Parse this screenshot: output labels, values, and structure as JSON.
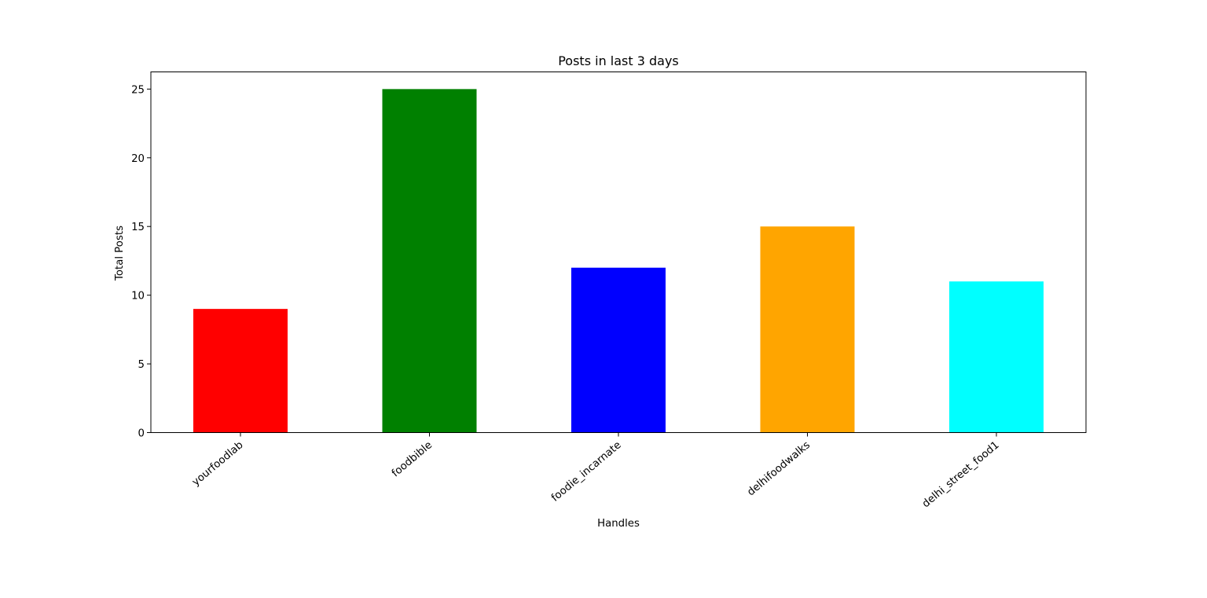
{
  "chart_data": {
    "type": "bar",
    "title": "Posts in last 3 days",
    "xlabel": "Handles",
    "ylabel": "Total Posts",
    "categories": [
      "yourfoodlab",
      "foodbible",
      "foodie_incarnate",
      "delhifoodwalks",
      "delhi_street_food1"
    ],
    "values": [
      9,
      25,
      12,
      15,
      11
    ],
    "colors": [
      "#ff0000",
      "#008000",
      "#0000ff",
      "#ffa500",
      "#00ffff"
    ],
    "ylim": [
      0,
      26.25
    ],
    "yticks": [
      0,
      5,
      10,
      15,
      20,
      25
    ],
    "grid": false,
    "legend": "none"
  }
}
